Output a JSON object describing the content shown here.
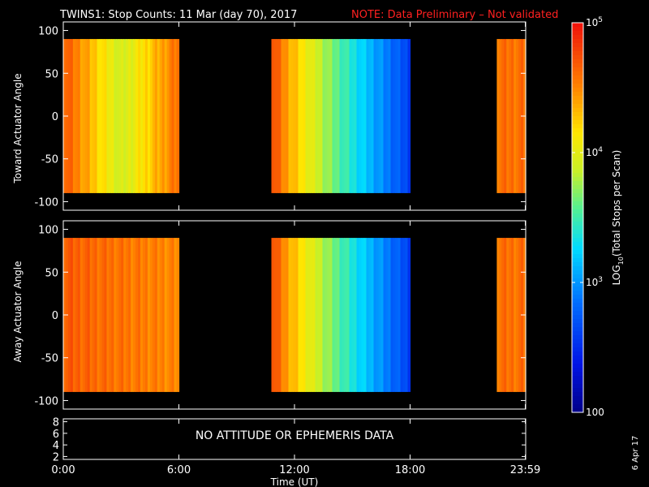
{
  "title": {
    "main": "TWINS1: Stop Counts: 11 Mar (day  70), 2017",
    "note": "NOTE: Data Preliminary – Not validated"
  },
  "panels": {
    "top": {
      "ylabel": "Toward Actuator Angle"
    },
    "bottom": {
      "ylabel": "Away Actuator Angle"
    },
    "status": {
      "message": "NO ATTITUDE OR EPHEMERIS DATA"
    }
  },
  "xaxis": {
    "label": "Time (UT)"
  },
  "colorbar": {
    "label": "LOG10(Total Stops per Scan)",
    "label_base": "LOG",
    "label_sub": "10",
    "label_rest": "(Total Stops per Scan)",
    "ticks": [
      {
        "value": 100,
        "label": "100"
      },
      {
        "value": 1000,
        "base": "10",
        "exp": "3"
      },
      {
        "value": 10000,
        "base": "10",
        "exp": "4"
      },
      {
        "value": 100000,
        "base": "10",
        "exp": "5"
      }
    ],
    "range": [
      100,
      100000
    ],
    "scale": "log"
  },
  "date_stamp": "6 Apr 17",
  "chart_data": [
    {
      "type": "heatmap",
      "ylabel": "Toward Actuator Angle",
      "xlabel": "",
      "xlim": [
        0,
        24
      ],
      "ylim": [
        -110,
        110
      ],
      "yticks": [
        -100,
        -50,
        0,
        50,
        100
      ],
      "data_y_range": [
        -90,
        90
      ],
      "data_intervals": [
        {
          "start": 0.0,
          "end": 6.0,
          "log_counts_start": 4.7,
          "log_counts_end": 4.6,
          "log_counts_mid": 3.9
        },
        {
          "start": 10.8,
          "end": 18.0,
          "log_counts_start": 4.8,
          "log_counts_end": 2.6
        },
        {
          "start": 22.5,
          "end": 24.0,
          "log_counts_start": 4.6,
          "log_counts_end": 4.6
        }
      ]
    },
    {
      "type": "heatmap",
      "ylabel": "Away Actuator Angle",
      "xlabel": "",
      "xlim": [
        0,
        24
      ],
      "ylim": [
        -110,
        110
      ],
      "yticks": [
        -100,
        -50,
        0,
        50,
        100
      ],
      "data_y_range": [
        -90,
        90
      ],
      "data_intervals": [
        {
          "start": 0.0,
          "end": 6.0,
          "log_counts_start": 4.7,
          "log_counts_end": 4.5
        },
        {
          "start": 10.8,
          "end": 18.0,
          "log_counts_start": 4.8,
          "log_counts_end": 2.6
        },
        {
          "start": 22.5,
          "end": 24.0,
          "log_counts_start": 4.6,
          "log_counts_end": 4.6
        }
      ]
    },
    {
      "type": "line",
      "ylim": [
        1.5,
        8.5
      ],
      "yticks": [
        2,
        4,
        6,
        8
      ],
      "xlim": [
        0,
        24
      ],
      "xlabel": "Time (UT)",
      "xticks": [
        {
          "value": 0,
          "label": "0:00"
        },
        {
          "value": 6,
          "label": "6:00"
        },
        {
          "value": 12,
          "label": "12:00"
        },
        {
          "value": 18,
          "label": "18:00"
        },
        {
          "value": 23.98,
          "label": "23:59"
        }
      ],
      "series": []
    }
  ]
}
